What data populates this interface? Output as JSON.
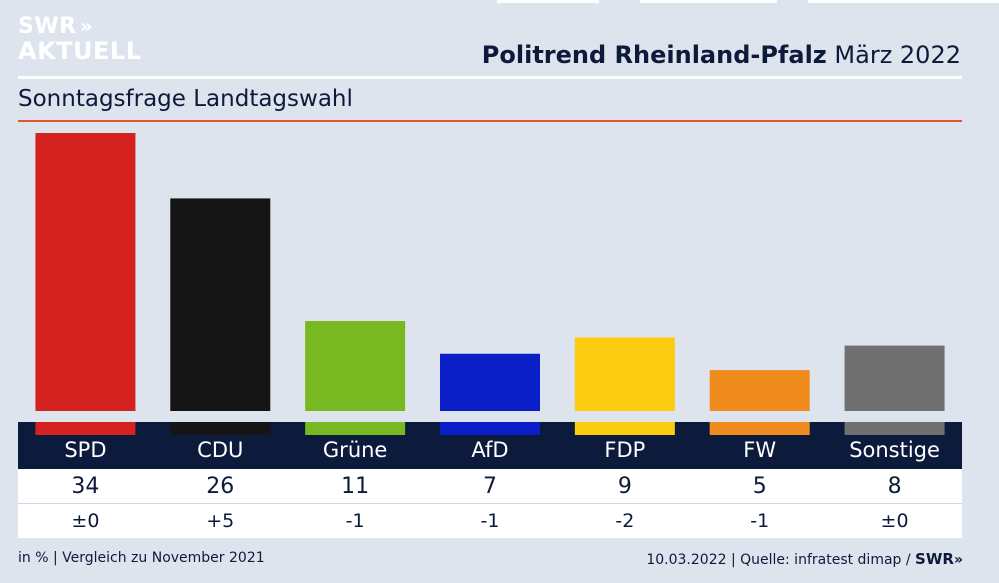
{
  "logo": {
    "line1": "SWR",
    "line2": "AKTUELL",
    "chevrons": "»"
  },
  "header": {
    "title": "Politrend Rheinland-Pfalz",
    "date": "März 2022"
  },
  "chart_data": {
    "type": "bar",
    "title": "Politrend Rheinland-Pfalz",
    "subtitle": "Sonntagsfrage Landtagswahl",
    "categories": [
      "SPD",
      "CDU",
      "Grüne",
      "AfD",
      "FDP",
      "FW",
      "Sonstige"
    ],
    "values": [
      34,
      26,
      11,
      7,
      9,
      5,
      8
    ],
    "value_labels": [
      "34",
      "26",
      "11",
      "7",
      "9",
      "5",
      "8"
    ],
    "changes": [
      "±0",
      "+5",
      "-1",
      "-1",
      "-2",
      "-1",
      "±0"
    ],
    "colors": [
      "#d62121",
      "#151515",
      "#78b821",
      "#0a1fc7",
      "#fccc11",
      "#f08c1e",
      "#707070"
    ],
    "xlabel": "",
    "ylabel": "",
    "ylim": [
      0,
      34
    ],
    "grid": false,
    "legend": "none"
  },
  "footer": {
    "left": "in % | Vergleich zu November 2021",
    "right_text": "10.03.2022 | Quelle: infratest dimap /",
    "brand": "SWR",
    "brand_chevrons": "»"
  }
}
